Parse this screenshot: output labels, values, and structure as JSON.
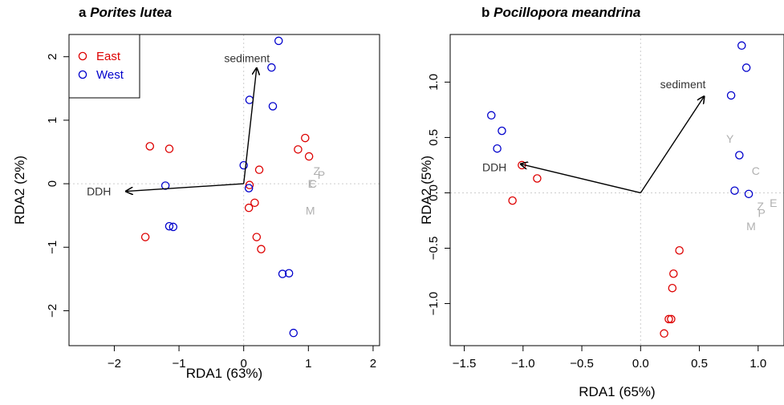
{
  "colors": {
    "east": "#dd0000",
    "west": "#0000cc",
    "loading": "#b0b0b0",
    "arrow": "#000000",
    "grid": "#cccccc"
  },
  "chart_data": [
    {
      "type": "scatter",
      "panel_letter": "a",
      "title": "Porites lutea",
      "xlabel": "RDA1 (63%)",
      "ylabel": "RDA2 (2%)",
      "xlim": [
        -2.7,
        2.1
      ],
      "ylim": [
        -2.55,
        2.35
      ],
      "xticks": [
        -2,
        -1,
        0,
        1,
        2
      ],
      "yticks": [
        -2,
        -1,
        0,
        1,
        2
      ],
      "zero_lines": true,
      "legend": {
        "position": "top-left",
        "entries": [
          {
            "label": "East",
            "series": "east"
          },
          {
            "label": "West",
            "series": "west"
          }
        ]
      },
      "series": [
        {
          "name": "East",
          "key": "east",
          "points": [
            [
              -1.45,
              0.59
            ],
            [
              -1.15,
              0.55
            ],
            [
              -1.52,
              -0.84
            ],
            [
              0.08,
              -0.38
            ],
            [
              0.09,
              -0.02
            ],
            [
              0.17,
              -0.3
            ],
            [
              0.24,
              0.22
            ],
            [
              0.2,
              -0.84
            ],
            [
              0.27,
              -1.03
            ],
            [
              0.84,
              0.54
            ],
            [
              0.95,
              0.72
            ],
            [
              1.01,
              0.43
            ]
          ]
        },
        {
          "name": "West",
          "key": "west",
          "points": [
            [
              -1.21,
              -0.03
            ],
            [
              -1.15,
              -0.67
            ],
            [
              -1.09,
              -0.68
            ],
            [
              0.0,
              0.29
            ],
            [
              0.08,
              -0.07
            ],
            [
              0.09,
              1.32
            ],
            [
              0.43,
              1.83
            ],
            [
              0.45,
              1.22
            ],
            [
              0.54,
              2.25
            ],
            [
              0.6,
              -1.42
            ],
            [
              0.7,
              -1.41
            ],
            [
              0.77,
              -2.35
            ]
          ]
        }
      ],
      "vectors": [
        {
          "label": "DDH",
          "x": -1.82,
          "y": -0.12,
          "label_x": -2.05,
          "label_y": -0.12,
          "anchor": "end"
        },
        {
          "label": "sediment",
          "x": 0.2,
          "y": 1.82,
          "label_x": 0.05,
          "label_y": 1.98,
          "anchor": "middle"
        }
      ],
      "loadings": [
        {
          "label": "Z",
          "x": 1.13,
          "y": 0.2
        },
        {
          "label": "P",
          "x": 1.2,
          "y": 0.14
        },
        {
          "label": "E",
          "x": 1.05,
          "y": 0.0
        },
        {
          "label": "C",
          "x": 1.07,
          "y": 0.0
        },
        {
          "label": "M",
          "x": 1.03,
          "y": -0.42
        }
      ]
    },
    {
      "type": "scatter",
      "panel_letter": "b",
      "title": "Pocillopora meandrina",
      "xlabel": "RDA1 (65%)",
      "ylabel": "RDA2 (5%)",
      "xlim": [
        -1.62,
        1.22
      ],
      "ylim": [
        -1.38,
        1.43
      ],
      "xticks": [
        -1.5,
        -1.0,
        -0.5,
        0.0,
        0.5,
        1.0
      ],
      "yticks": [
        -1.0,
        -0.5,
        0.0,
        0.5,
        1.0
      ],
      "zero_lines": true,
      "series": [
        {
          "name": "East",
          "key": "east",
          "points": [
            [
              -1.01,
              0.25
            ],
            [
              -0.88,
              0.13
            ],
            [
              -1.09,
              -0.07
            ],
            [
              0.33,
              -0.52
            ],
            [
              0.28,
              -0.73
            ],
            [
              0.27,
              -0.86
            ],
            [
              0.24,
              -1.14
            ],
            [
              0.26,
              -1.14
            ],
            [
              0.2,
              -1.27
            ]
          ]
        },
        {
          "name": "West",
          "key": "west",
          "points": [
            [
              -1.27,
              0.7
            ],
            [
              -1.18,
              0.56
            ],
            [
              -1.22,
              0.4
            ],
            [
              0.77,
              0.88
            ],
            [
              0.84,
              0.34
            ],
            [
              0.8,
              0.02
            ],
            [
              0.9,
              1.13
            ],
            [
              0.86,
              1.33
            ],
            [
              0.92,
              -0.01
            ]
          ]
        }
      ],
      "vectors": [
        {
          "label": "DDH",
          "x": -1.02,
          "y": 0.26,
          "label_x": -1.14,
          "label_y": 0.23,
          "anchor": "end"
        },
        {
          "label": "sediment",
          "x": 0.54,
          "y": 0.87,
          "label_x": 0.36,
          "label_y": 0.98,
          "anchor": "middle"
        }
      ],
      "loadings": [
        {
          "label": "Y",
          "x": 0.76,
          "y": 0.49
        },
        {
          "label": "C",
          "x": 0.98,
          "y": 0.2
        },
        {
          "label": "Z",
          "x": 1.02,
          "y": -0.12
        },
        {
          "label": "E",
          "x": 1.13,
          "y": -0.09
        },
        {
          "label": "P",
          "x": 1.03,
          "y": -0.18
        },
        {
          "label": "M",
          "x": 0.94,
          "y": -0.3
        }
      ]
    }
  ]
}
